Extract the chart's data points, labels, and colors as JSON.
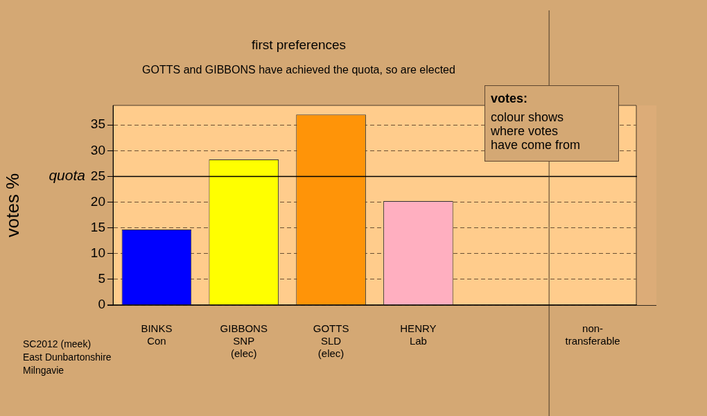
{
  "chart_data": {
    "type": "bar",
    "title": "first preferences",
    "subtitle": "GOTTS and GIBBONS have achieved the quota, so are elected",
    "ylabel": "votes %",
    "categories": [
      "BINKS\nCon",
      "GIBBONS\nSNP\n(elec)",
      "GOTTS\nSLD\n(elec)",
      "HENRY\nLab",
      null,
      "non-\ntransferable"
    ],
    "values": [
      14.7,
      28.3,
      37.0,
      20.2,
      null,
      0
    ],
    "colors": [
      "#0000ff",
      "#ffff00",
      "#ff9408",
      "#ffafc0",
      "#cccccc",
      "#cccccc"
    ],
    "ylim": [
      0,
      38.8
    ],
    "yticks": [
      0,
      5,
      10,
      15,
      20,
      25,
      30,
      35
    ],
    "grid": "y",
    "legend": false,
    "ref_lines": [
      {
        "axis": "y",
        "value": 25,
        "label": "quota",
        "color": "#000000",
        "line_style": "solid"
      },
      {
        "axis": "x",
        "value": "non-\ntransferable",
        "color": "#4a3a28",
        "line_style": "solid"
      }
    ],
    "annotations": [
      "SC2012 (meek)\nEast Dunbartonshire\nMilngavie",
      "votes:",
      "colour shows\nwhere votes\nhave come from"
    ]
  }
}
